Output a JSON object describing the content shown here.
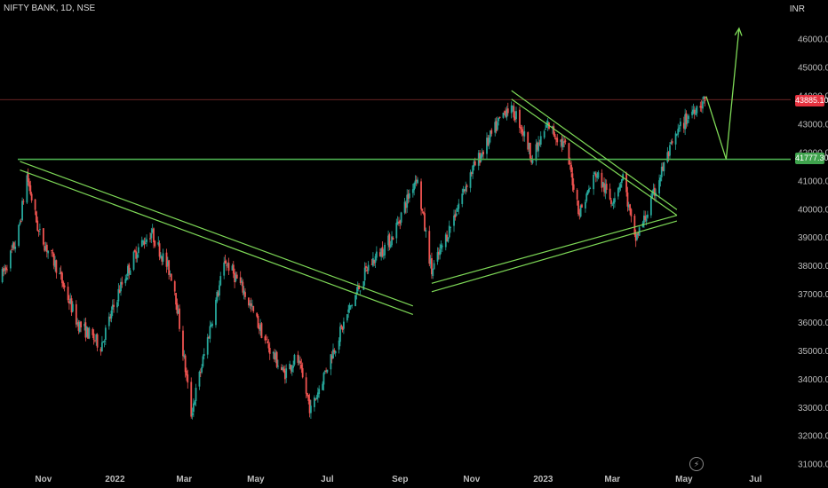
{
  "header": {
    "symbol_label": "NIFTY BANK, 1D, NSE",
    "currency": "INR"
  },
  "price_tags": {
    "last": "43885.10",
    "support": "41777.30"
  },
  "colors": {
    "up": "#26a69a",
    "down": "#ef5350",
    "trendline": "#7ed957",
    "support": "#4caf50",
    "last_line": "#8b2f2f"
  },
  "icons": {
    "replay": "lightning-icon"
  },
  "chart_data": {
    "type": "candlestick",
    "title": "",
    "y_axis_label": "INR",
    "ylim": [
      30800,
      47400
    ],
    "y_ticks": [
      31000,
      32000,
      33000,
      34000,
      35000,
      36000,
      37000,
      38000,
      39000,
      40000,
      41000,
      42000,
      43000,
      44000,
      45000,
      46000
    ],
    "y_tick_labels": [
      "31000.00",
      "32000.00",
      "33000.00",
      "34000.00",
      "35000.00",
      "36000.00",
      "37000.00",
      "38000.00",
      "39000.00",
      "40000.00",
      "41000.00",
      "42000.00",
      "43000.00",
      "44000.00",
      "45000.00",
      "46000.00"
    ],
    "x_tick_labels": [
      "Nov",
      "2022",
      "Mar",
      "May",
      "Jul",
      "Sep",
      "Nov",
      "2023",
      "Mar",
      "May",
      "Jul"
    ],
    "last_price": 43885.1,
    "support_level": 41777.3,
    "close_path": [
      [
        "2021-09-25",
        37500
      ],
      [
        "2021-10-10",
        39000
      ],
      [
        "2021-10-18",
        41200
      ],
      [
        "2021-10-28",
        39200
      ],
      [
        "2021-11-12",
        38000
      ],
      [
        "2021-11-30",
        36000
      ],
      [
        "2021-12-20",
        35200
      ],
      [
        "2022-01-05",
        37200
      ],
      [
        "2022-01-20",
        38600
      ],
      [
        "2022-02-01",
        39200
      ],
      [
        "2022-02-20",
        37500
      ],
      [
        "2022-03-07",
        32800
      ],
      [
        "2022-03-25",
        36200
      ],
      [
        "2022-04-05",
        38200
      ],
      [
        "2022-04-20",
        37200
      ],
      [
        "2022-05-10",
        35300
      ],
      [
        "2022-05-25",
        34200
      ],
      [
        "2022-06-05",
        34800
      ],
      [
        "2022-06-17",
        32900
      ],
      [
        "2022-07-01",
        34500
      ],
      [
        "2022-07-20",
        36500
      ],
      [
        "2022-08-05",
        38000
      ],
      [
        "2022-08-25",
        39000
      ],
      [
        "2022-09-15",
        41200
      ],
      [
        "2022-09-28",
        37800
      ],
      [
        "2022-10-10",
        39000
      ],
      [
        "2022-10-30",
        41200
      ],
      [
        "2022-11-15",
        42400
      ],
      [
        "2022-12-01",
        43600
      ],
      [
        "2022-12-10",
        43300
      ],
      [
        "2022-12-23",
        41800
      ],
      [
        "2023-01-05",
        43000
      ],
      [
        "2023-01-20",
        42200
      ],
      [
        "2023-02-01",
        39900
      ],
      [
        "2023-02-15",
        41300
      ],
      [
        "2023-02-28",
        40300
      ],
      [
        "2023-03-10",
        41200
      ],
      [
        "2023-03-20",
        38900
      ],
      [
        "2023-03-31",
        39900
      ],
      [
        "2023-04-15",
        41700
      ],
      [
        "2023-04-28",
        42900
      ],
      [
        "2023-05-10",
        43600
      ],
      [
        "2023-05-20",
        43885
      ]
    ],
    "annotations": {
      "support_line_price": 41777.3,
      "falling_channel_2021": {
        "upper": [
          [
            "2021-10-12",
            41700
          ],
          [
            "2022-09-12",
            36600
          ]
        ],
        "lower": [
          [
            "2021-10-12",
            41400
          ],
          [
            "2022-09-12",
            36300
          ]
        ]
      },
      "falling_channel_2023": {
        "upper": [
          [
            "2022-12-05",
            44200
          ],
          [
            "2023-04-25",
            40000
          ]
        ],
        "lower": [
          [
            "2022-12-05",
            43900
          ],
          [
            "2023-04-25",
            39800
          ]
        ]
      },
      "rising_channel_2023": {
        "upper": [
          [
            "2022-09-28",
            37400
          ],
          [
            "2023-04-25",
            39800
          ]
        ],
        "lower": [
          [
            "2022-09-28",
            37100
          ],
          [
            "2023-04-25",
            39600
          ]
        ]
      },
      "projection_path": [
        [
          "2023-05-20",
          44000
        ],
        [
          "2023-06-06",
          41777
        ],
        [
          "2023-06-17",
          46400
        ]
      ]
    }
  }
}
